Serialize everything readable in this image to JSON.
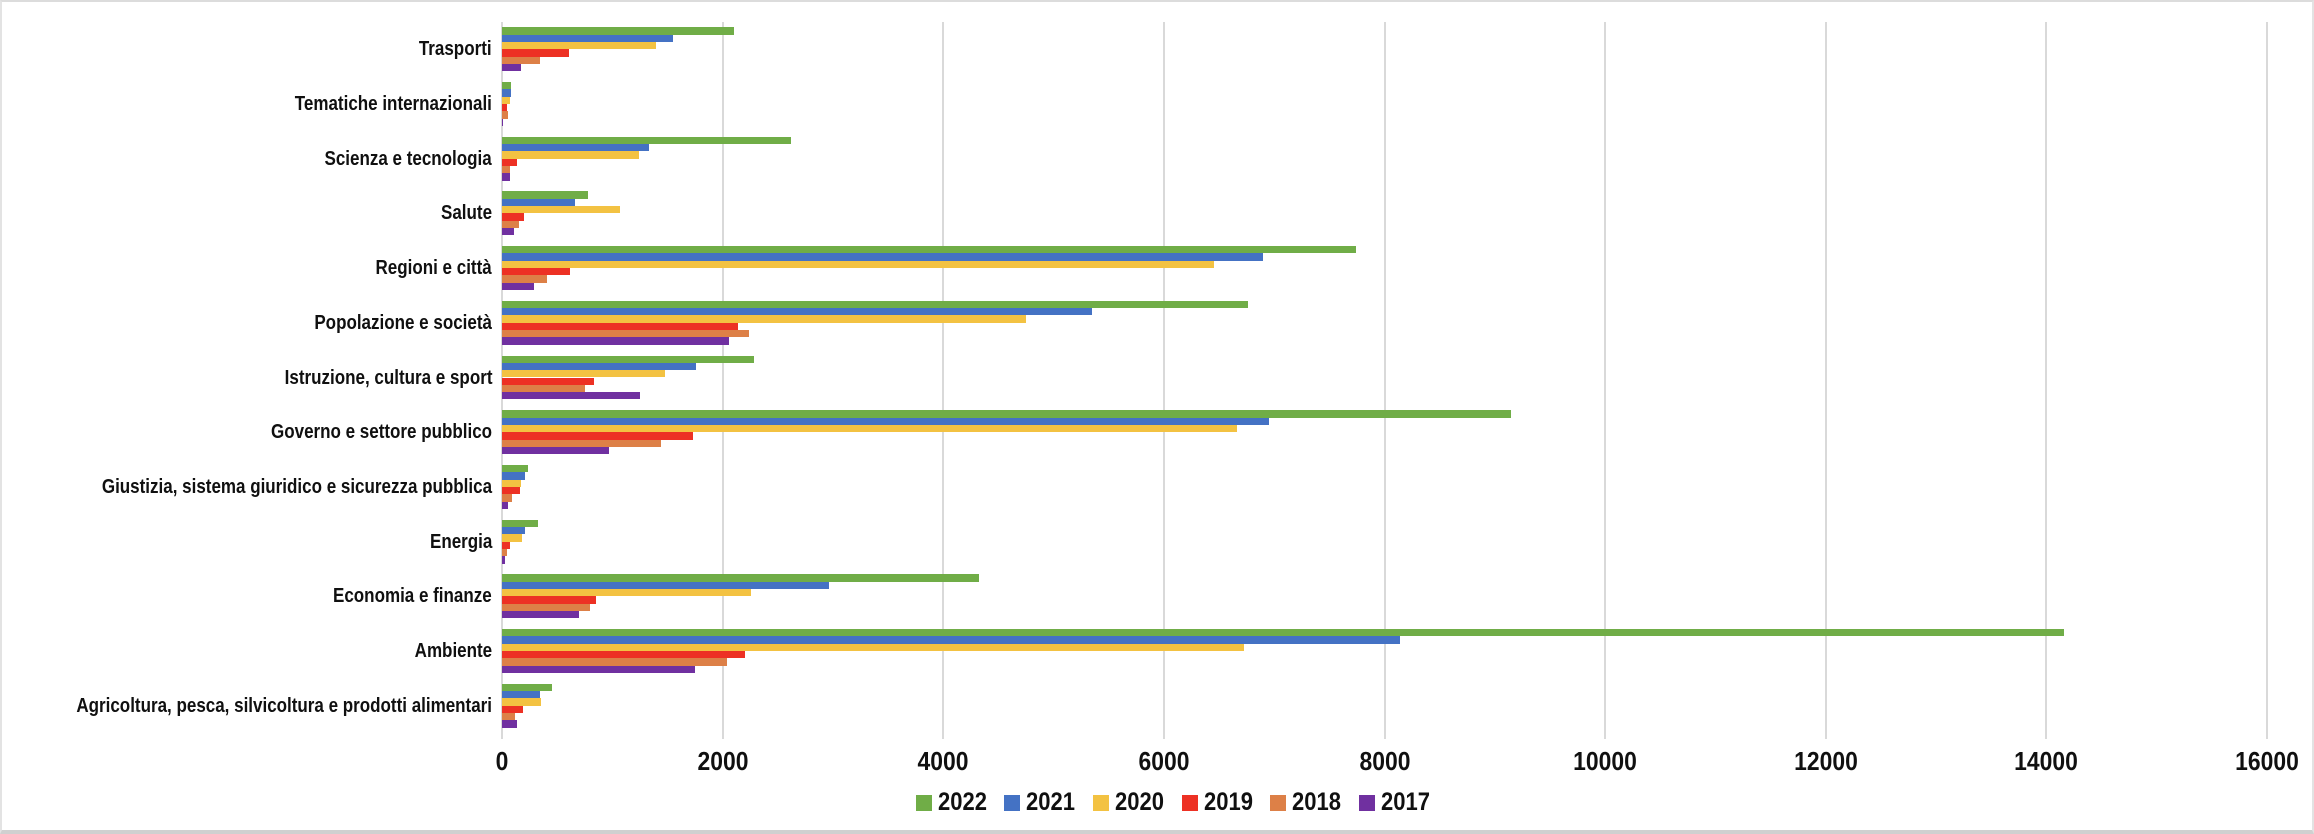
{
  "chart_data": {
    "type": "bar",
    "orientation": "horizontal",
    "title": "",
    "xlabel": "",
    "ylabel": "",
    "categories": [
      "Trasporti",
      "Tematiche internazionali",
      "Scienza e tecnologia",
      "Salute",
      "Regioni e città",
      "Popolazione e società",
      "Istruzione, cultura e sport",
      "Governo e settore pubblico",
      "Giustizia, sistema giuridico e sicurezza pubblica",
      "Energia",
      "Economia e finanze",
      "Ambiente",
      "Agricoltura, pesca, silvicoltura e prodotti alimentari"
    ],
    "categories_order": "top-to-bottom",
    "series": [
      {
        "name": "2022",
        "color": "#70AD47",
        "values": [
          2100,
          80,
          2620,
          780,
          7740,
          6760,
          2280,
          9150,
          240,
          325,
          4320,
          14160,
          450
        ]
      },
      {
        "name": "2021",
        "color": "#4472C4",
        "values": [
          1550,
          78,
          1330,
          660,
          6900,
          5350,
          1760,
          6950,
          210,
          210,
          2960,
          8140,
          340
        ]
      },
      {
        "name": "2020",
        "color": "#F3C242",
        "values": [
          1400,
          72,
          1240,
          1070,
          6450,
          4750,
          1480,
          6660,
          170,
          180,
          2260,
          6730,
          350
        ]
      },
      {
        "name": "2019",
        "color": "#ED3124",
        "values": [
          610,
          45,
          135,
          200,
          620,
          2140,
          835,
          1730,
          160,
          75,
          850,
          2200,
          193
        ]
      },
      {
        "name": "2018",
        "color": "#DD8047",
        "values": [
          340,
          50,
          75,
          155,
          410,
          2240,
          750,
          1440,
          95,
          48,
          795,
          2040,
          121
        ]
      },
      {
        "name": "2017",
        "color": "#7030A0",
        "values": [
          175,
          12,
          68,
          113,
          290,
          2060,
          1250,
          970,
          57,
          30,
          700,
          1750,
          133
        ]
      }
    ],
    "xlim": [
      0,
      16000
    ],
    "xtick_labels": [
      "0",
      "2000",
      "4000",
      "6000",
      "8000",
      "10000",
      "12000",
      "14000",
      "16000"
    ],
    "grid": "vertical",
    "gridline_color": "#D9D9D9",
    "legend_position": "bottom"
  }
}
